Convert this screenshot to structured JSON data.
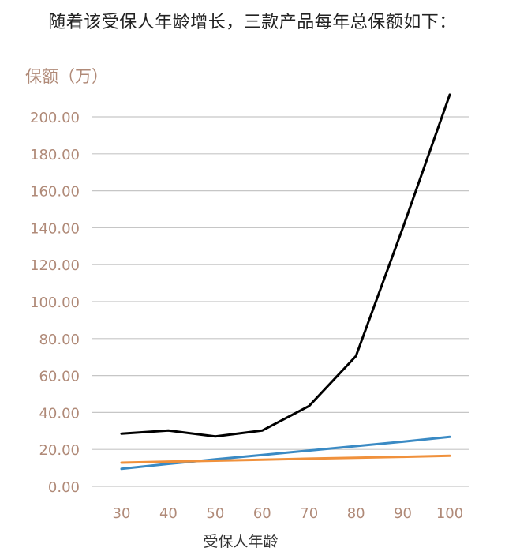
{
  "heading": "随着该受保人年龄增长，三款产品每年总保额如下：",
  "chart_data": {
    "type": "line",
    "title": "随着该受保人年龄增长，三款产品每年总保额如下：",
    "ylabel": "保额（万）",
    "xlabel": "受保人年龄",
    "x": [
      30,
      40,
      50,
      60,
      70,
      80,
      90,
      100
    ],
    "x_ticks": [
      "30",
      "40",
      "50",
      "60",
      "70",
      "80",
      "90",
      "100"
    ],
    "y_ticks": [
      "0.00",
      "20.00",
      "40.00",
      "60.00",
      "80.00",
      "100.00",
      "120.00",
      "140.00",
      "160.00",
      "180.00",
      "200.00"
    ],
    "ylim": [
      0,
      200
    ],
    "grid": true,
    "legend": "none",
    "series": [
      {
        "color": "#000000",
        "values": [
          28.5,
          30.2,
          27,
          30.2,
          43.5,
          70.5,
          140,
          212
        ]
      },
      {
        "color": "#3a8ac4",
        "values": [
          9.5,
          12.2,
          14.6,
          17,
          19.4,
          21.8,
          24.2,
          26.8
        ]
      },
      {
        "color": "#f0913c",
        "values": [
          12.8,
          13.4,
          13.9,
          14.4,
          15,
          15.5,
          16,
          16.6
        ]
      }
    ]
  }
}
